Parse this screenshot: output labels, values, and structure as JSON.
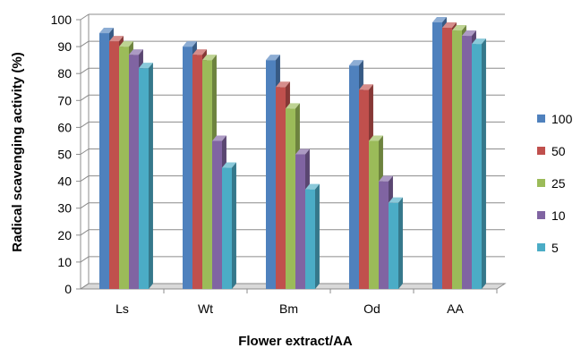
{
  "chart_data": {
    "type": "bar",
    "title": "",
    "xlabel": "Flower extract/AA",
    "ylabel": "Radical scavenging activity (%)",
    "ylim": [
      0,
      100
    ],
    "yticks": [
      0,
      10,
      20,
      30,
      40,
      50,
      60,
      70,
      80,
      90,
      100
    ],
    "grid": true,
    "legend_position": "right",
    "categories": [
      "Ls",
      "Wt",
      "Bm",
      "Od",
      "AA"
    ],
    "series": [
      {
        "name": "100",
        "color": "#4F81BD",
        "values": [
          95,
          90,
          85,
          83,
          99
        ]
      },
      {
        "name": "50",
        "color": "#C0504D",
        "values": [
          92,
          87,
          75,
          74,
          97
        ]
      },
      {
        "name": "25",
        "color": "#9BBB59",
        "values": [
          90,
          85,
          67,
          55,
          96
        ]
      },
      {
        "name": "10",
        "color": "#8064A2",
        "values": [
          87,
          55,
          50,
          40,
          94
        ]
      },
      {
        "name": "5",
        "color": "#4BACC6",
        "values": [
          82,
          45,
          37,
          32,
          91
        ]
      }
    ]
  }
}
